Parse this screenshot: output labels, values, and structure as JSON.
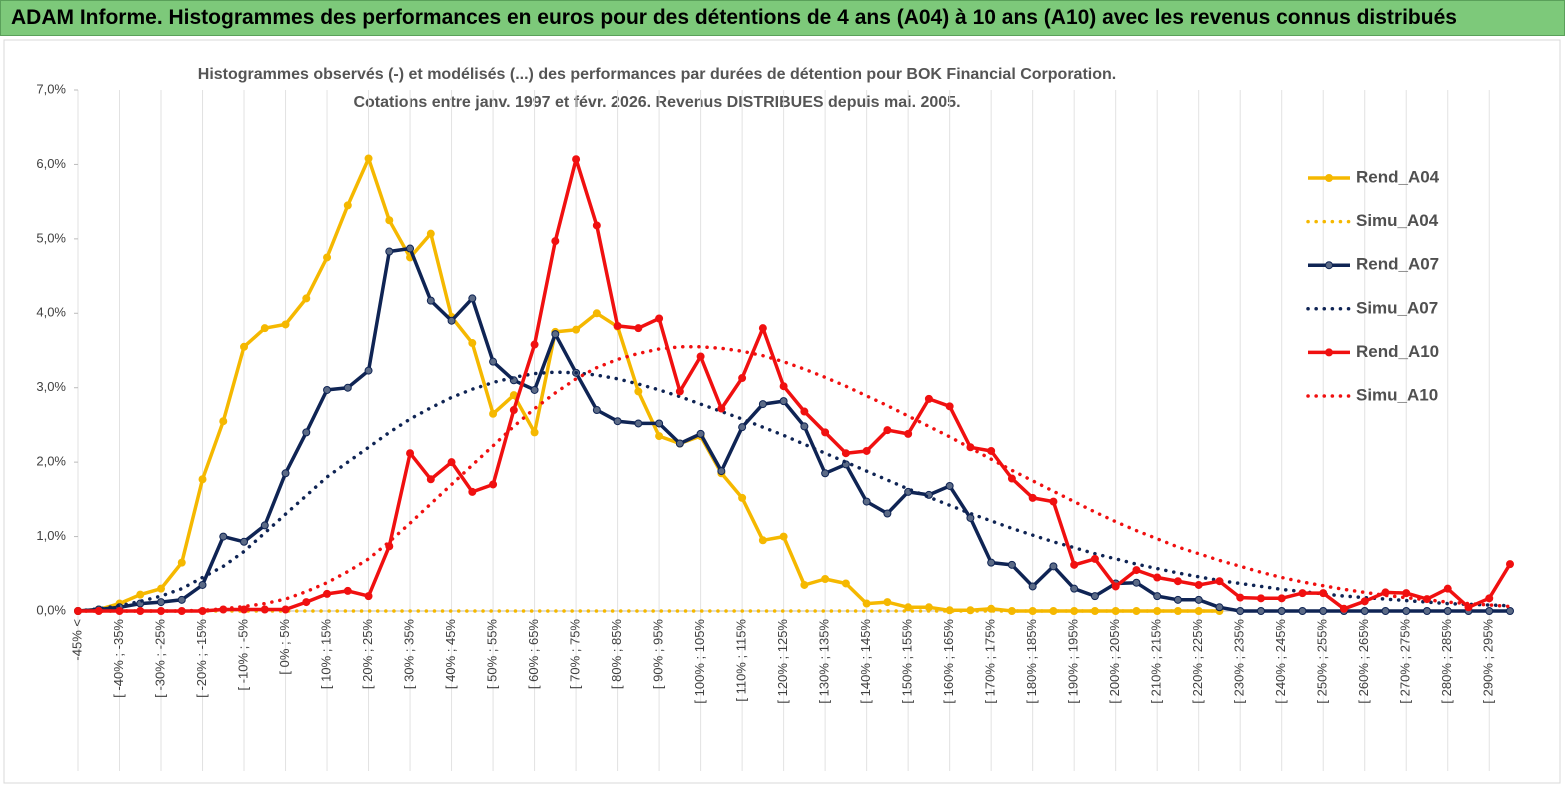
{
  "header": {
    "title": "ADAM Informe. Histogrammes des performances en euros pour des détentions de 4 ans (A04) à 10 ans (A10) avec les revenus connus distribués"
  },
  "chart_data": {
    "type": "line",
    "title": [
      "Histogrammes observés (-) et modélisés (...)  des performances par durées de détention pour BOK Financial Corporation.",
      "Cotations entre janv. 1997 et févr. 2026. Revenus DISTRIBUES depuis mai. 2005."
    ],
    "categories": [
      "-45% <",
      null,
      "[ -40% ; -35%",
      null,
      "[ -30% ; -25%",
      null,
      "[ -20% ; -15%",
      null,
      "[ -10% ; -5%",
      null,
      "[ 0% ; 5%",
      null,
      "[ 10% ; 15%",
      null,
      "[ 20% ; 25%",
      null,
      "[ 30% ; 35%",
      null,
      "[ 40% ; 45%",
      null,
      "[ 50% ; 55%",
      null,
      "[ 60% ; 65%",
      null,
      "[ 70% ; 75%",
      null,
      "[ 80% ; 85%",
      null,
      "[ 90% ; 95%",
      null,
      "[ 100% ; 105%",
      null,
      "[ 110% ; 115%",
      null,
      "[ 120% ; 125%",
      null,
      "[ 130% ; 135%",
      null,
      "[ 140% ; 145%",
      null,
      "[ 150% ; 155%",
      null,
      "[ 160% ; 165%",
      null,
      "[ 170% ; 175%",
      null,
      "[ 180% ; 185%",
      null,
      "[ 190% ; 195%",
      null,
      "[ 200% ; 205%",
      null,
      "[ 210% ; 215%",
      null,
      "[ 220% ; 225%",
      null,
      "[ 230% ; 235%",
      null,
      "[ 240% ; 245%",
      null,
      "[ 250% ; 255%",
      null,
      "[ 260% ; 265%",
      null,
      "[ 270% ; 275%",
      null,
      "[ 280% ; 285%",
      null,
      "[ 290% ; 295%",
      null
    ],
    "series": [
      {
        "name": "Rend_A04",
        "color": "#f5b800",
        "style": "solid",
        "markers": true,
        "marker_color": "#f5b800",
        "values": [
          0,
          0.02,
          0.1,
          0.22,
          0.3,
          0.65,
          1.77,
          2.55,
          3.55,
          3.8,
          3.85,
          4.2,
          4.75,
          5.45,
          6.08,
          5.25,
          4.75,
          5.07,
          3.95,
          3.6,
          2.65,
          2.9,
          2.4,
          3.75,
          3.78,
          4.0,
          3.82,
          2.95,
          2.35,
          2.25,
          2.35,
          1.85,
          1.52,
          0.95,
          1.0,
          0.35,
          0.43,
          0.37,
          0.1,
          0.12,
          0.05,
          0.05,
          0.01,
          0.01,
          0.03,
          0,
          0,
          0,
          0,
          0,
          0,
          0,
          0,
          0,
          0,
          0,
          null,
          null,
          null,
          null,
          null,
          null,
          null,
          null,
          null,
          null,
          null,
          null,
          null,
          null
        ]
      },
      {
        "name": "Simu_A04",
        "color": "#f5b800",
        "style": "dotted",
        "markers": false,
        "values": [
          0,
          0,
          0,
          0,
          0,
          0,
          0,
          0,
          0,
          0,
          0,
          0,
          0,
          0,
          0,
          0,
          0,
          0,
          0,
          0,
          0,
          0,
          0,
          0,
          0,
          0,
          0,
          0,
          0,
          0,
          0,
          0,
          0,
          0,
          0,
          0,
          0,
          0,
          0,
          0,
          0,
          0,
          0,
          0,
          0,
          0,
          0,
          0,
          0,
          0,
          0,
          0,
          0,
          0,
          0,
          0,
          null,
          null,
          null,
          null,
          null,
          null,
          null,
          null,
          null,
          null,
          null,
          null,
          null,
          null
        ]
      },
      {
        "name": "Rend_A07",
        "color": "#0f2454",
        "style": "solid",
        "markers": true,
        "marker_color": "#5b6a86",
        "values": [
          0,
          0.02,
          0.05,
          0.1,
          0.12,
          0.15,
          0.35,
          1.0,
          0.93,
          1.15,
          1.85,
          2.4,
          2.97,
          3.0,
          3.23,
          4.83,
          4.87,
          4.17,
          3.9,
          4.2,
          3.35,
          3.1,
          2.97,
          3.72,
          3.2,
          2.7,
          2.55,
          2.52,
          2.52,
          2.25,
          2.38,
          1.88,
          2.47,
          2.78,
          2.82,
          2.48,
          1.85,
          1.97,
          1.47,
          1.31,
          1.6,
          1.56,
          1.68,
          1.25,
          0.65,
          0.62,
          0.33,
          0.6,
          0.3,
          0.2,
          0.37,
          0.38,
          0.2,
          0.15,
          0.15,
          0.05,
          0,
          0,
          0,
          0,
          0,
          0,
          0,
          0,
          0,
          0,
          0,
          0,
          0,
          0
        ]
      },
      {
        "name": "Simu_A07",
        "color": "#0f2454",
        "style": "dotted",
        "markers": false,
        "values": [
          0,
          0.03,
          0.07,
          0.13,
          0.2,
          0.3,
          0.45,
          0.6,
          0.8,
          1.05,
          1.3,
          1.55,
          1.8,
          2.0,
          2.2,
          2.4,
          2.58,
          2.73,
          2.87,
          2.98,
          3.07,
          3.14,
          3.19,
          3.21,
          3.2,
          3.17,
          3.12,
          3.05,
          2.97,
          2.88,
          2.78,
          2.68,
          2.58,
          2.47,
          2.36,
          2.24,
          2.12,
          2.0,
          1.88,
          1.76,
          1.64,
          1.53,
          1.42,
          1.31,
          1.21,
          1.11,
          1.02,
          0.93,
          0.85,
          0.77,
          0.7,
          0.63,
          0.57,
          0.51,
          0.46,
          0.41,
          0.37,
          0.33,
          0.29,
          0.26,
          0.23,
          0.2,
          0.18,
          0.16,
          0.14,
          0.12,
          0.1,
          0.09,
          0.08,
          0.07
        ]
      },
      {
        "name": "Rend_A10",
        "color": "#f01010",
        "style": "solid",
        "markers": true,
        "marker_color": "#f01010",
        "values": [
          0,
          0,
          0,
          0,
          0,
          0,
          0,
          0.02,
          0.02,
          0.02,
          0.02,
          0.12,
          0.23,
          0.27,
          0.2,
          0.87,
          2.12,
          1.77,
          2.0,
          1.6,
          1.7,
          2.7,
          3.58,
          4.97,
          6.07,
          5.18,
          3.83,
          3.8,
          3.93,
          2.95,
          3.42,
          2.72,
          3.13,
          3.8,
          3.02,
          2.68,
          2.4,
          2.12,
          2.15,
          2.43,
          2.38,
          2.85,
          2.75,
          2.2,
          2.15,
          1.78,
          1.52,
          1.47,
          0.62,
          0.7,
          0.33,
          0.55,
          0.45,
          0.4,
          0.35,
          0.4,
          0.18,
          0.17,
          0.17,
          0.24,
          0.24,
          0.03,
          0.13,
          0.25,
          0.24,
          0.16,
          0.3,
          0.05,
          0.17,
          0.63
        ]
      },
      {
        "name": "Simu_A10",
        "color": "#f01010",
        "style": "dotted",
        "markers": false,
        "values": [
          0,
          0,
          0,
          0,
          0,
          0,
          0.01,
          0.03,
          0.06,
          0.1,
          0.16,
          0.26,
          0.38,
          0.53,
          0.7,
          0.93,
          1.18,
          1.44,
          1.7,
          1.96,
          2.22,
          2.48,
          2.72,
          2.93,
          3.12,
          3.27,
          3.38,
          3.46,
          3.52,
          3.55,
          3.55,
          3.53,
          3.49,
          3.43,
          3.35,
          3.25,
          3.14,
          3.02,
          2.89,
          2.76,
          2.62,
          2.48,
          2.34,
          2.19,
          2.04,
          1.89,
          1.75,
          1.61,
          1.47,
          1.33,
          1.2,
          1.08,
          0.97,
          0.86,
          0.77,
          0.68,
          0.6,
          0.52,
          0.45,
          0.39,
          0.34,
          0.29,
          0.25,
          0.21,
          0.18,
          0.15,
          0.12,
          0.1,
          0.08,
          0.06
        ]
      }
    ],
    "ylim": [
      0,
      7
    ],
    "yticks": [
      {
        "value": 0,
        "label": "0,0%"
      },
      {
        "value": 1,
        "label": "1,0%"
      },
      {
        "value": 2,
        "label": "2,0%"
      },
      {
        "value": 3,
        "label": "3,0%"
      },
      {
        "value": 4,
        "label": "4,0%"
      },
      {
        "value": 5,
        "label": "5,0%"
      },
      {
        "value": 6,
        "label": "6,0%"
      },
      {
        "value": 7,
        "label": "7,0%"
      }
    ],
    "grid": "x",
    "legend": "right"
  }
}
